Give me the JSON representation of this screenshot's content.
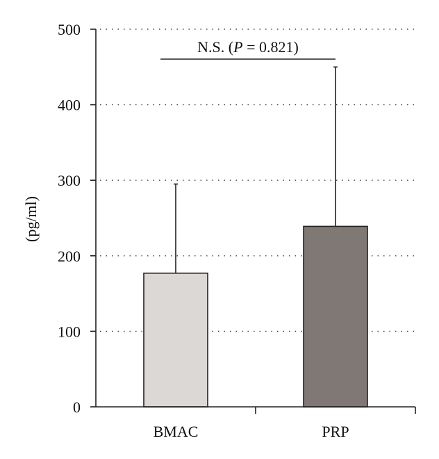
{
  "chart_data": {
    "type": "bar",
    "title": "",
    "xlabel": "",
    "ylabel": "(pg/ml)",
    "ylim": [
      0,
      500
    ],
    "yticks": [
      0,
      100,
      200,
      300,
      400,
      500
    ],
    "ytick_labels": [
      "0",
      "100",
      "200",
      "300",
      "400",
      "500"
    ],
    "grid": "dotted horizontal",
    "categories": [
      "BMAC",
      "PRP"
    ],
    "values": [
      177,
      239
    ],
    "error_upper": [
      295,
      450
    ],
    "bar_colors": [
      "#dcd8d6",
      "#807875"
    ],
    "significance": {
      "between": [
        "BMAC",
        "PRP"
      ],
      "prefix": "N.S. (",
      "p_symbol": "P",
      "suffix": " = 0.821)"
    }
  }
}
